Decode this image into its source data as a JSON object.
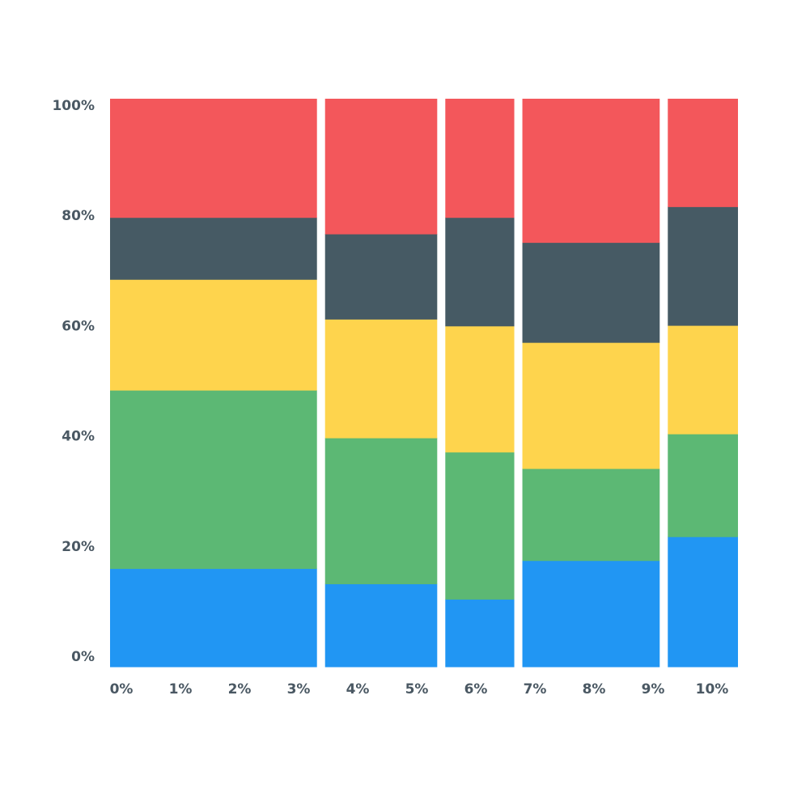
{
  "chart_data": {
    "type": "bar",
    "subtype": "marimekko",
    "title": "",
    "xlabel": "",
    "ylabel": "",
    "ylim": [
      0,
      100
    ],
    "y_ticks": [
      "0%",
      "20%",
      "40%",
      "60%",
      "80%",
      "100%"
    ],
    "x_ticks": [
      "0%",
      "1%",
      "2%",
      "3%",
      "4%",
      "5%",
      "6%",
      "7%",
      "8%",
      "9%",
      "10%"
    ],
    "grid": false,
    "legend": "none",
    "segment_colors": [
      "#2196f3",
      "#5cb874",
      "#fed44d",
      "#465a64",
      "#f3575b"
    ],
    "columns": [
      {
        "width_share": 34.5,
        "segments": [
          17.3,
          31.4,
          19.5,
          10.9,
          20.9
        ]
      },
      {
        "width_share": 18.7,
        "segments": [
          14.6,
          25.7,
          20.9,
          15.0,
          23.8
        ]
      },
      {
        "width_share": 11.5,
        "segments": [
          11.9,
          25.9,
          22.2,
          19.1,
          20.9
        ]
      },
      {
        "width_share": 22.9,
        "segments": [
          18.7,
          16.2,
          22.2,
          17.6,
          25.3
        ]
      },
      {
        "width_share": 11.7,
        "segments": [
          22.9,
          18.1,
          19.1,
          20.9,
          19.0
        ]
      }
    ]
  }
}
